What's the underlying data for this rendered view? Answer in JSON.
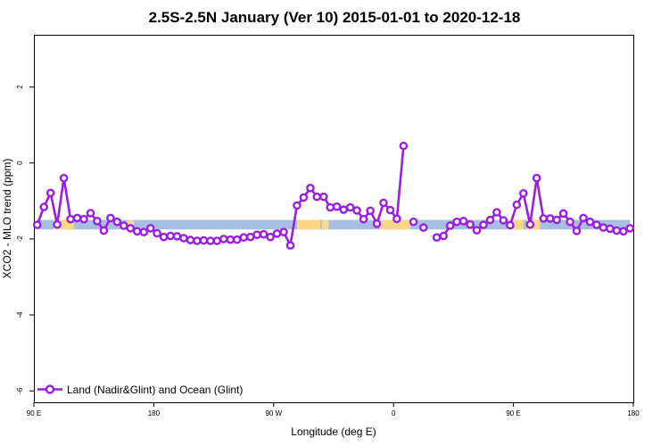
{
  "chart_data": {
    "type": "line",
    "title": "2.5S-2.5N January (Ver 10)   2015-01-01 to 2020-12-18",
    "xlabel": "Longitude (deg E)",
    "ylabel": "XCO2 - MLO trend (ppm)",
    "xlim": [
      90,
      450
    ],
    "ylim": [
      -6.3,
      3.35
    ],
    "x_ticks": [
      {
        "value": 90,
        "label": "90 E"
      },
      {
        "value": 162,
        "label": "180"
      },
      {
        "value": 234,
        "label": "90 W"
      },
      {
        "value": 306,
        "label": "0"
      },
      {
        "value": 378,
        "label": "90 E"
      },
      {
        "value": 450,
        "label": "180"
      }
    ],
    "y_ticks": [
      {
        "value": -6,
        "label": "-6"
      },
      {
        "value": -4,
        "label": "-4"
      },
      {
        "value": -2,
        "label": "-2"
      },
      {
        "value": 0,
        "label": "0"
      },
      {
        "value": 2,
        "label": "2"
      }
    ],
    "grid": false,
    "legend": {
      "placement": "bottom-left",
      "entries": [
        "Land (Nadir&Glint) and Ocean (Glint)"
      ]
    },
    "surface_band": {
      "y_range": [
        -1.75,
        -1.5
      ],
      "ocean_color": "#a7bfe0",
      "land_color": "#fcd886",
      "land_segments": [
        [
          102,
          114
        ],
        [
          146,
          150
        ],
        [
          248,
          262
        ],
        [
          263,
          267
        ],
        [
          298,
          316
        ],
        [
          374,
          384
        ],
        [
          386,
          394
        ]
      ]
    },
    "series": [
      {
        "name": "Land (Nadir&Glint) and Ocean (Glint)",
        "color": "#9a1fe0",
        "x": [
          92,
          96,
          100,
          104,
          108,
          112,
          116,
          120,
          124,
          128,
          132,
          136,
          140,
          144,
          148,
          152,
          156,
          160,
          164,
          168,
          172,
          176,
          180,
          184,
          188,
          192,
          196,
          200,
          204,
          208,
          212,
          216,
          220,
          224,
          228,
          232,
          236,
          240,
          244,
          248,
          252,
          256,
          260,
          264,
          268,
          272,
          276,
          280,
          284,
          288,
          292,
          296,
          300,
          304,
          308,
          312,
          318,
          324,
          332,
          336,
          340,
          344,
          348,
          352,
          356,
          360,
          364,
          368,
          372,
          376,
          380,
          384,
          388,
          392,
          396,
          400,
          404,
          408,
          412,
          416,
          420,
          424,
          428,
          432,
          436,
          440,
          444,
          448
        ],
        "y": [
          -1.63,
          -1.16,
          -0.79,
          -1.62,
          -0.4,
          -1.48,
          -1.45,
          -1.48,
          -1.32,
          -1.53,
          -1.78,
          -1.45,
          -1.55,
          -1.65,
          -1.72,
          -1.8,
          -1.82,
          -1.72,
          -1.85,
          -1.95,
          -1.92,
          -1.93,
          -1.98,
          -2.03,
          -2.05,
          -2.04,
          -2.05,
          -2.05,
          -2.0,
          -2.02,
          -2.02,
          -1.96,
          -1.95,
          -1.89,
          -1.88,
          -1.95,
          -1.86,
          -1.82,
          -2.17,
          -1.12,
          -0.91,
          -0.66,
          -0.89,
          -0.89,
          -1.17,
          -1.15,
          -1.23,
          -1.17,
          -1.25,
          -1.48,
          -1.26,
          -1.6,
          -1.05,
          -1.24,
          -1.47,
          0.45,
          -1.55,
          -1.7,
          -1.96,
          -1.92,
          -1.65,
          -1.55,
          -1.53,
          -1.62,
          -1.77,
          -1.63,
          -1.5,
          -1.3,
          -1.51,
          -1.64,
          -1.1,
          -0.8,
          -1.62,
          -0.4,
          -1.46,
          -1.46,
          -1.5,
          -1.33,
          -1.55,
          -1.79,
          -1.45,
          -1.55,
          -1.63,
          -1.7,
          -1.73,
          -1.78,
          -1.8,
          -1.72
        ]
      }
    ]
  }
}
